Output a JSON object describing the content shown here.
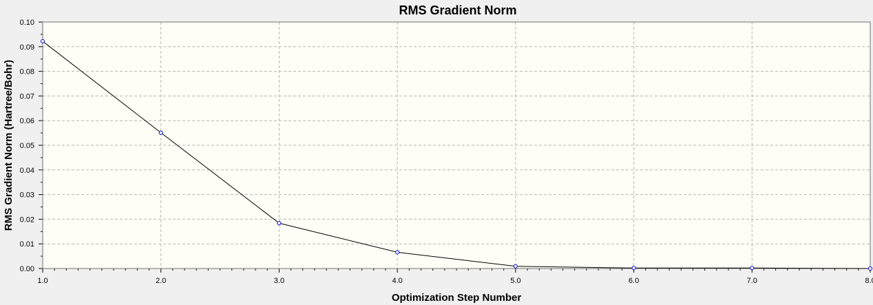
{
  "chart_data": {
    "type": "line",
    "title": "RMS Gradient Norm",
    "xlabel": "Optimization Step Number",
    "ylabel": "RMS Gradient Norm (Hartree/Bohr)",
    "xlim": [
      1.0,
      8.0
    ],
    "ylim": [
      0.0,
      0.1
    ],
    "x_ticks": [
      "1.0",
      "2.0",
      "3.0",
      "4.0",
      "5.0",
      "6.0",
      "7.0",
      "8.0"
    ],
    "y_ticks": [
      "0.00",
      "0.01",
      "0.02",
      "0.03",
      "0.04",
      "0.05",
      "0.06",
      "0.07",
      "0.08",
      "0.09",
      "0.10"
    ],
    "grid": true,
    "series": [
      {
        "x": [
          1,
          2,
          3,
          4,
          5,
          6,
          7,
          8
        ],
        "y": [
          0.0922,
          0.0551,
          0.0184,
          0.0066,
          0.0009,
          0.0002,
          0.0002,
          0.0
        ]
      }
    ],
    "colors": {
      "plot_background": "#fefef6",
      "line": "#000000",
      "marker": "#0000cc",
      "grid": "#b4b4b4",
      "frame": "#707070"
    }
  }
}
